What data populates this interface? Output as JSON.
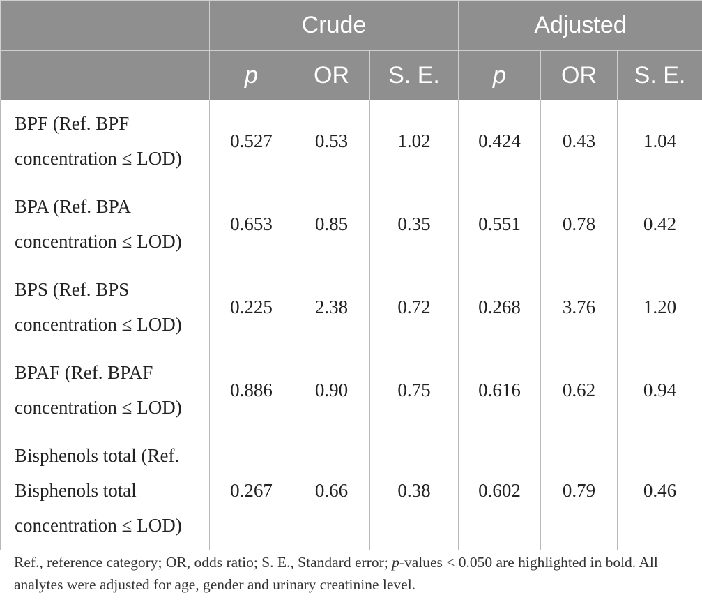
{
  "table": {
    "group_headers": [
      "Crude",
      "Adjusted"
    ],
    "sub_headers": [
      "p",
      "OR",
      "S. E.",
      "p",
      "OR",
      "S. E."
    ],
    "rows": [
      {
        "label_line1": "BPF (Ref. BPF",
        "label_line2": "concentration ≤ LOD)",
        "values": [
          "0.527",
          "0.53",
          "1.02",
          "0.424",
          "0.43",
          "1.04"
        ]
      },
      {
        "label_line1": "BPA (Ref. BPA",
        "label_line2": "concentration ≤ LOD)",
        "values": [
          "0.653",
          "0.85",
          "0.35",
          "0.551",
          "0.78",
          "0.42"
        ]
      },
      {
        "label_line1": "BPS (Ref. BPS",
        "label_line2": "concentration ≤ LOD)",
        "values": [
          "0.225",
          "2.38",
          "0.72",
          "0.268",
          "3.76",
          "1.20"
        ]
      },
      {
        "label_line1": "BPAF (Ref. BPAF",
        "label_line2": "concentration ≤ LOD)",
        "values": [
          "0.886",
          "0.90",
          "0.75",
          "0.616",
          "0.62",
          "0.94"
        ]
      },
      {
        "label_line1": "Bisphenols total (Ref.",
        "label_line2": "Bisphenols total",
        "label_line3": "concentration ≤ LOD)",
        "values": [
          "0.267",
          "0.66",
          "0.38",
          "0.602",
          "0.79",
          "0.46"
        ]
      }
    ]
  },
  "footnote": {
    "part1": "Ref., reference category; OR, odds ratio; S. E., Standard error; ",
    "p_italic": "p",
    "part2": "-values < 0.050 are highlighted in bold. All analytes were adjusted for age, gender and urinary creatinine level."
  },
  "colors": {
    "header_bg": "#8f8f8f",
    "header_text": "#ffffff",
    "body_text": "#222222",
    "border": "#b8b8b8"
  }
}
